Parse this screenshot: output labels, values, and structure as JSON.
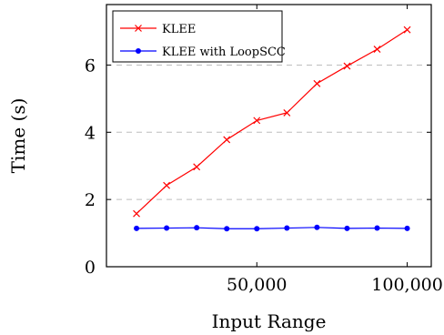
{
  "chart_data": {
    "type": "line",
    "xlabel": "Input Range",
    "ylabel": "Time (s)",
    "xlim": [
      0,
      108000
    ],
    "ylim": [
      0,
      7.8
    ],
    "x_ticks": [
      50000,
      100000
    ],
    "x_tick_labels": [
      "50,000",
      "100,000"
    ],
    "y_ticks": [
      0,
      2,
      4,
      6
    ],
    "y_tick_labels": [
      "0",
      "2",
      "4",
      "6"
    ],
    "grid": "horizontal dashed at y ticks",
    "legend_position": "top-left",
    "x": [
      10000,
      20000,
      30000,
      40000,
      50000,
      60000,
      70000,
      80000,
      90000,
      100000
    ],
    "series": [
      {
        "name": "KLEE",
        "color": "#ff0000",
        "marker": "cross",
        "values": [
          1.58,
          2.42,
          2.97,
          3.78,
          4.35,
          4.58,
          5.45,
          5.97,
          6.47,
          7.05
        ]
      },
      {
        "name": "KLEE with LoopSCC",
        "color": "#0000ff",
        "marker": "circle",
        "values": [
          1.14,
          1.15,
          1.16,
          1.13,
          1.13,
          1.15,
          1.17,
          1.14,
          1.15,
          1.14
        ]
      }
    ]
  }
}
